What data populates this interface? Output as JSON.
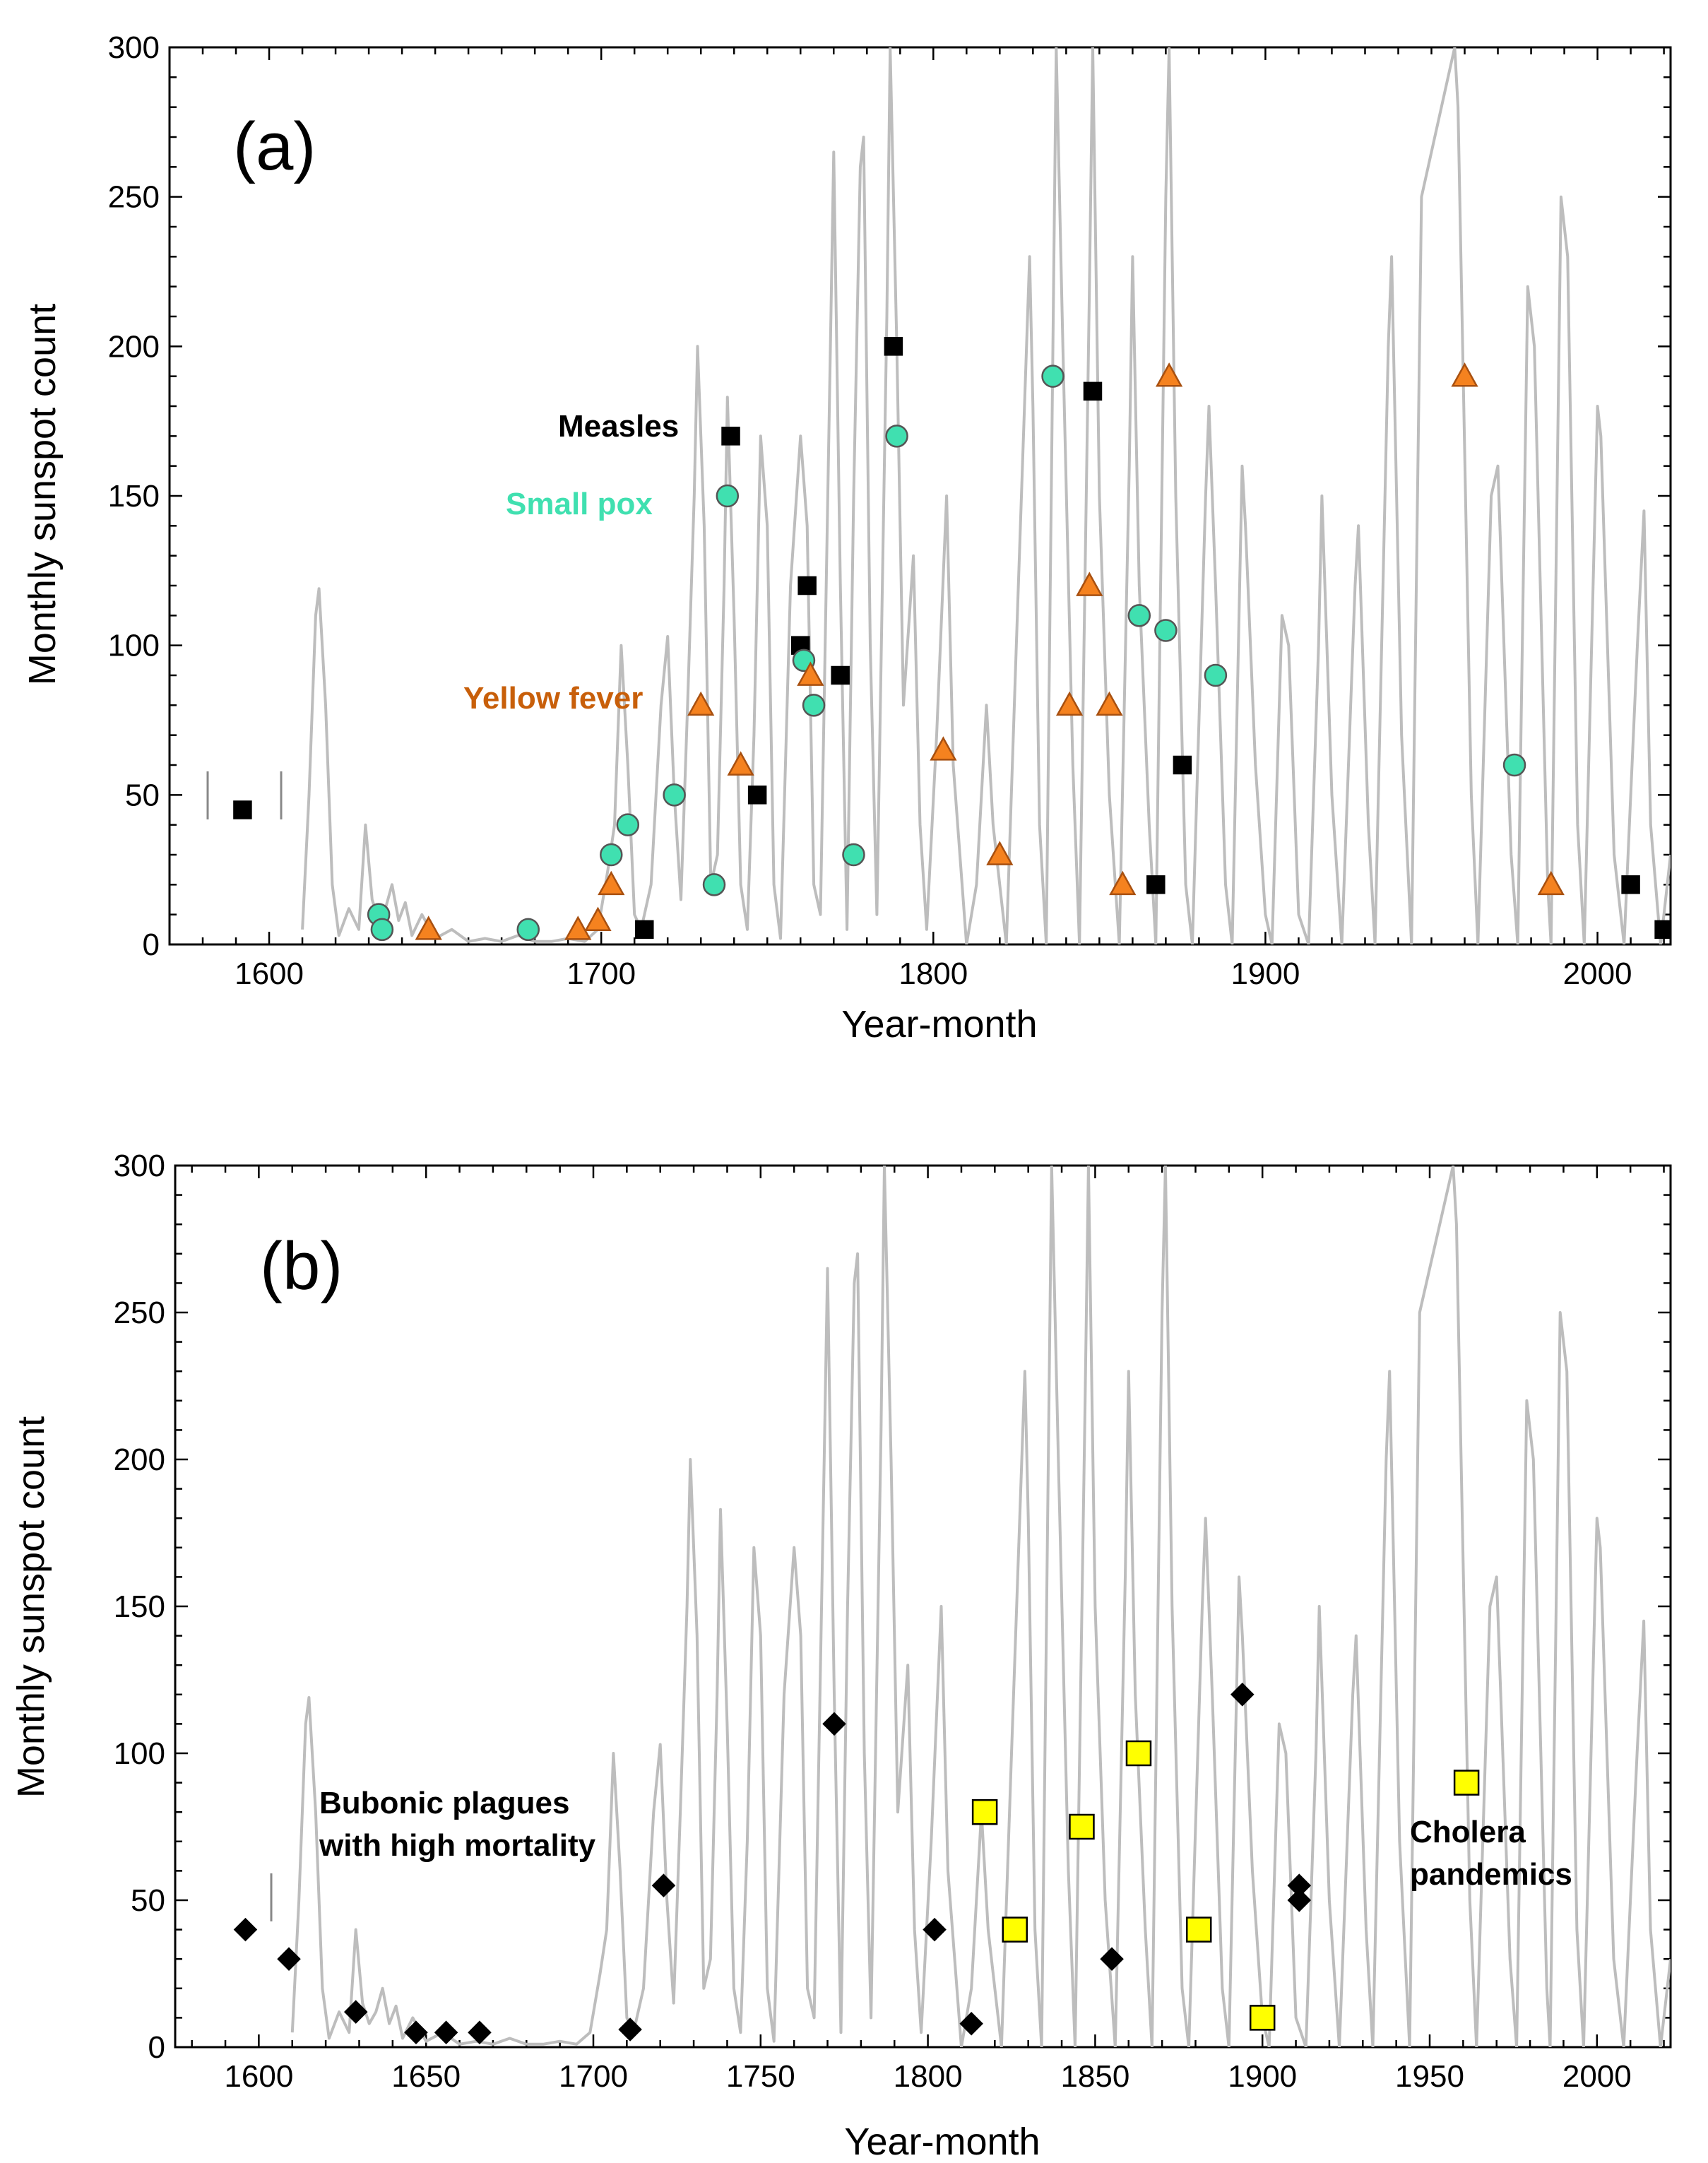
{
  "chart_data": [
    {
      "panel": "(a)",
      "type": "line",
      "xlabel": "Year-month",
      "ylabel": "Monthly sunspot count",
      "xlim": [
        1570,
        2022
      ],
      "ylim": [
        0,
        300
      ],
      "x_ticks": [
        1600,
        1700,
        1800,
        1900,
        2000
      ],
      "y_ticks": [
        0,
        50,
        100,
        150,
        200,
        250,
        300
      ],
      "background_series": {
        "name": "Monthly sunspot count",
        "color": "#bdbdbd",
        "points": [
          [
            1610,
            5
          ],
          [
            1612,
            50
          ],
          [
            1614,
            110
          ],
          [
            1615,
            119
          ],
          [
            1617,
            80
          ],
          [
            1619,
            20
          ],
          [
            1621,
            3
          ],
          [
            1624,
            12
          ],
          [
            1627,
            5
          ],
          [
            1629,
            40
          ],
          [
            1631,
            15
          ],
          [
            1633,
            8
          ],
          [
            1635,
            12
          ],
          [
            1637,
            20
          ],
          [
            1639,
            8
          ],
          [
            1641,
            14
          ],
          [
            1643,
            3
          ],
          [
            1646,
            10
          ],
          [
            1650,
            2
          ],
          [
            1655,
            5
          ],
          [
            1660,
            1
          ],
          [
            1665,
            2
          ],
          [
            1670,
            1
          ],
          [
            1675,
            3
          ],
          [
            1680,
            1
          ],
          [
            1685,
            1
          ],
          [
            1690,
            2
          ],
          [
            1695,
            1
          ],
          [
            1699,
            5
          ],
          [
            1702,
            25
          ],
          [
            1704,
            40
          ],
          [
            1706,
            100
          ],
          [
            1708,
            60
          ],
          [
            1710,
            10
          ],
          [
            1712,
            5
          ],
          [
            1715,
            20
          ],
          [
            1718,
            80
          ],
          [
            1720,
            103
          ],
          [
            1722,
            50
          ],
          [
            1724,
            15
          ],
          [
            1726,
            80
          ],
          [
            1728,
            150
          ],
          [
            1729,
            200
          ],
          [
            1731,
            140
          ],
          [
            1733,
            20
          ],
          [
            1735,
            30
          ],
          [
            1737,
            120
          ],
          [
            1738,
            183
          ],
          [
            1740,
            110
          ],
          [
            1742,
            20
          ],
          [
            1744,
            5
          ],
          [
            1746,
            70
          ],
          [
            1748,
            170
          ],
          [
            1750,
            140
          ],
          [
            1752,
            20
          ],
          [
            1754,
            2
          ],
          [
            1757,
            120
          ],
          [
            1760,
            170
          ],
          [
            1762,
            140
          ],
          [
            1764,
            20
          ],
          [
            1766,
            10
          ],
          [
            1769,
            200
          ],
          [
            1770,
            265
          ],
          [
            1772,
            120
          ],
          [
            1774,
            5
          ],
          [
            1776,
            150
          ],
          [
            1778,
            260
          ],
          [
            1779,
            270
          ],
          [
            1781,
            100
          ],
          [
            1783,
            10
          ],
          [
            1786,
            210
          ],
          [
            1787,
            300
          ],
          [
            1789,
            200
          ],
          [
            1791,
            80
          ],
          [
            1794,
            130
          ],
          [
            1796,
            40
          ],
          [
            1798,
            5
          ],
          [
            1801,
            70
          ],
          [
            1804,
            150
          ],
          [
            1806,
            60
          ],
          [
            1810,
            0
          ],
          [
            1813,
            20
          ],
          [
            1816,
            80
          ],
          [
            1818,
            40
          ],
          [
            1822,
            0
          ],
          [
            1825,
            100
          ],
          [
            1829,
            230
          ],
          [
            1830,
            180
          ],
          [
            1832,
            40
          ],
          [
            1834,
            0
          ],
          [
            1836,
            200
          ],
          [
            1837,
            300
          ],
          [
            1839,
            200
          ],
          [
            1842,
            60
          ],
          [
            1844,
            0
          ],
          [
            1847,
            220
          ],
          [
            1848,
            300
          ],
          [
            1850,
            150
          ],
          [
            1853,
            50
          ],
          [
            1856,
            0
          ],
          [
            1859,
            160
          ],
          [
            1860,
            230
          ],
          [
            1862,
            120
          ],
          [
            1865,
            40
          ],
          [
            1867,
            0
          ],
          [
            1870,
            250
          ],
          [
            1871,
            300
          ],
          [
            1873,
            150
          ],
          [
            1876,
            20
          ],
          [
            1878,
            0
          ],
          [
            1882,
            150
          ],
          [
            1883,
            180
          ],
          [
            1885,
            120
          ],
          [
            1888,
            20
          ],
          [
            1890,
            0
          ],
          [
            1893,
            160
          ],
          [
            1894,
            140
          ],
          [
            1897,
            60
          ],
          [
            1900,
            10
          ],
          [
            1902,
            0
          ],
          [
            1905,
            110
          ],
          [
            1907,
            100
          ],
          [
            1910,
            10
          ],
          [
            1913,
            0
          ],
          [
            1916,
            100
          ],
          [
            1917,
            150
          ],
          [
            1920,
            50
          ],
          [
            1923,
            0
          ],
          [
            1927,
            120
          ],
          [
            1928,
            140
          ],
          [
            1931,
            40
          ],
          [
            1933,
            0
          ],
          [
            1937,
            200
          ],
          [
            1938,
            230
          ],
          [
            1941,
            70
          ],
          [
            1944,
            0
          ],
          [
            1947,
            250
          ],
          [
            1957,
            300
          ],
          [
            1958,
            280
          ],
          [
            1962,
            50
          ],
          [
            1964,
            0
          ],
          [
            1968,
            150
          ],
          [
            1970,
            160
          ],
          [
            1974,
            30
          ],
          [
            1976,
            0
          ],
          [
            1979,
            220
          ],
          [
            1981,
            200
          ],
          [
            1985,
            20
          ],
          [
            1986,
            0
          ],
          [
            1989,
            250
          ],
          [
            1991,
            230
          ],
          [
            1994,
            40
          ],
          [
            1996,
            0
          ],
          [
            2000,
            180
          ],
          [
            2001,
            170
          ],
          [
            2005,
            30
          ],
          [
            2008,
            0
          ],
          [
            2012,
            100
          ],
          [
            2014,
            145
          ],
          [
            2016,
            40
          ],
          [
            2019,
            0
          ],
          [
            2022,
            30
          ]
        ]
      },
      "annotations": [
        {
          "text": "Measles",
          "color": "#000000"
        },
        {
          "text": "Small pox",
          "color": "#40e0b0"
        },
        {
          "text": "Yellow fever",
          "color": "#c85f0a"
        }
      ],
      "series": [
        {
          "name": "Measles",
          "marker": "square",
          "fill": "#000000",
          "stroke": "#000000",
          "points": [
            [
              1592,
              45
            ],
            [
              1713,
              5
            ],
            [
              1739,
              170
            ],
            [
              1747,
              50
            ],
            [
              1760,
              100
            ],
            [
              1762,
              120
            ],
            [
              1772,
              90
            ],
            [
              1788,
              200
            ],
            [
              1848,
              185
            ],
            [
              1867,
              20
            ],
            [
              1875,
              60
            ],
            [
              2010,
              20
            ],
            [
              2020,
              5
            ]
          ]
        },
        {
          "name": "Small pox",
          "marker": "circle",
          "fill": "#40e0b0",
          "stroke": "#555555",
          "points": [
            [
              1633,
              10
            ],
            [
              1634,
              5
            ],
            [
              1678,
              5
            ],
            [
              1703,
              30
            ],
            [
              1708,
              40
            ],
            [
              1722,
              50
            ],
            [
              1734,
              20
            ],
            [
              1738,
              150
            ],
            [
              1761,
              95
            ],
            [
              1764,
              80
            ],
            [
              1776,
              30
            ],
            [
              1789,
              170
            ],
            [
              1836,
              190
            ],
            [
              1862,
              110
            ],
            [
              1870,
              105
            ],
            [
              1885,
              90
            ],
            [
              1975,
              60
            ]
          ]
        },
        {
          "name": "Yellow fever",
          "marker": "triangle",
          "fill": "#f5821f",
          "stroke": "#a85010",
          "points": [
            [
              1648,
              5
            ],
            [
              1693,
              5
            ],
            [
              1699,
              8
            ],
            [
              1703,
              20
            ],
            [
              1730,
              80
            ],
            [
              1742,
              60
            ],
            [
              1763,
              90
            ],
            [
              1803,
              65
            ],
            [
              1820,
              30
            ],
            [
              1841,
              80
            ],
            [
              1847,
              120
            ],
            [
              1853,
              80
            ],
            [
              1857,
              20
            ],
            [
              1871,
              190
            ],
            [
              1960,
              190
            ],
            [
              1986,
              20
            ]
          ]
        }
      ]
    },
    {
      "panel": "(b)",
      "type": "line",
      "xlabel": "Year-month",
      "ylabel": "Monthly sunspot count",
      "xlim": [
        1575,
        2022
      ],
      "ylim": [
        0,
        300
      ],
      "x_ticks": [
        1600,
        1650,
        1700,
        1750,
        1800,
        1850,
        1900,
        1950,
        2000
      ],
      "y_ticks": [
        0,
        50,
        100,
        150,
        200,
        250,
        300
      ],
      "annotations": [
        {
          "text": "Bubonic plagues",
          "color": "#000000"
        },
        {
          "text": "with high mortality",
          "color": "#000000"
        },
        {
          "text": "Cholera",
          "color": "#000000"
        },
        {
          "text": "pandemics",
          "color": "#000000"
        }
      ],
      "series": [
        {
          "name": "Bubonic plagues with high mortality",
          "marker": "diamond",
          "fill": "#000000",
          "stroke": "#000000",
          "points": [
            [
              1596,
              40
            ],
            [
              1609,
              30
            ],
            [
              1629,
              12
            ],
            [
              1647,
              5
            ],
            [
              1656,
              5
            ],
            [
              1666,
              5
            ],
            [
              1711,
              6
            ],
            [
              1721,
              55
            ],
            [
              1772,
              110
            ],
            [
              1802,
              40
            ],
            [
              1813,
              8
            ],
            [
              1855,
              30
            ],
            [
              1894,
              120
            ],
            [
              1911,
              55
            ],
            [
              1911,
              50
            ]
          ]
        },
        {
          "name": "Cholera pandemics",
          "marker": "square",
          "fill": "#ffff00",
          "stroke": "#000000",
          "points": [
            [
              1817,
              80
            ],
            [
              1826,
              40
            ],
            [
              1846,
              75
            ],
            [
              1863,
              100
            ],
            [
              1881,
              40
            ],
            [
              1900,
              10
            ],
            [
              1961,
              90
            ]
          ]
        }
      ]
    }
  ]
}
